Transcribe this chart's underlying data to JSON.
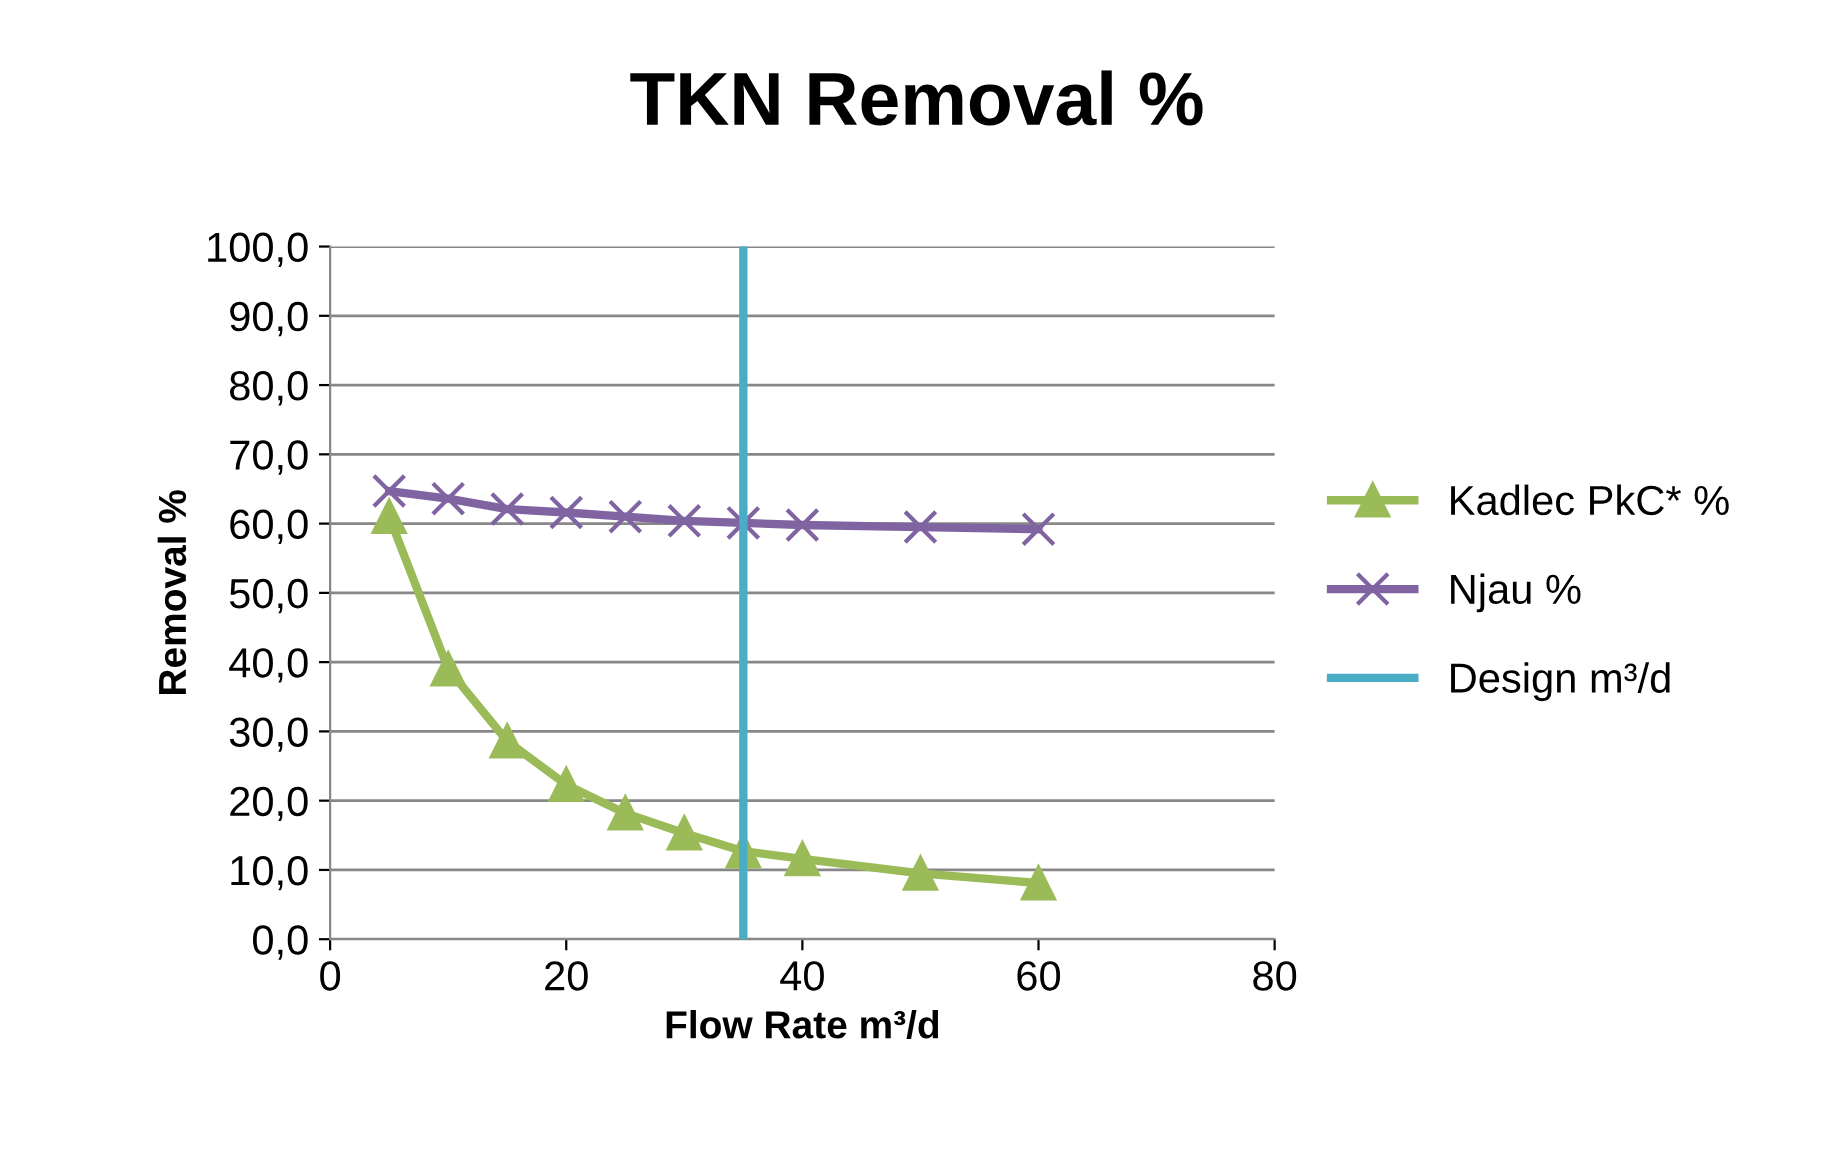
{
  "chart_data": {
    "type": "line",
    "title": "TKN Removal %",
    "xlabel": "Flow Rate m³/d",
    "ylabel": "Removal %",
    "xlim": [
      0,
      80
    ],
    "xticks": [
      0,
      20,
      40,
      60,
      80
    ],
    "ylim": [
      0,
      100
    ],
    "yticks": [
      {
        "value": 0,
        "label": "0,0"
      },
      {
        "value": 10,
        "label": "10,0"
      },
      {
        "value": 20,
        "label": "20,0"
      },
      {
        "value": 30,
        "label": "30,0"
      },
      {
        "value": 40,
        "label": "40,0"
      },
      {
        "value": 50,
        "label": "50,0"
      },
      {
        "value": 60,
        "label": "60,0"
      },
      {
        "value": 70,
        "label": "70,0"
      },
      {
        "value": 80,
        "label": "80,0"
      },
      {
        "value": 90,
        "label": "90,0"
      },
      {
        "value": 100,
        "label": "100,0"
      }
    ],
    "grid": "y",
    "legend": "right",
    "x": [
      5,
      10,
      15,
      20,
      25,
      30,
      35,
      40,
      50,
      60
    ],
    "series": [
      {
        "name": "Kadlec PkC* %",
        "color": "#9bbb59",
        "marker": "triangle",
        "values": [
          61.0,
          39.0,
          28.6,
          22.3,
          18.2,
          15.3,
          12.7,
          11.6,
          9.5,
          8.1
        ]
      },
      {
        "name": "Njau %",
        "color": "#8064a2",
        "marker": "cross",
        "values": [
          64.7,
          63.6,
          62.1,
          61.6,
          61.0,
          60.4,
          60.1,
          59.8,
          59.5,
          59.2
        ]
      },
      {
        "name": "Design m³/d",
        "color": "#4bacc6",
        "marker": "none",
        "x": [
          35,
          35
        ],
        "values": [
          0,
          100
        ]
      }
    ]
  }
}
